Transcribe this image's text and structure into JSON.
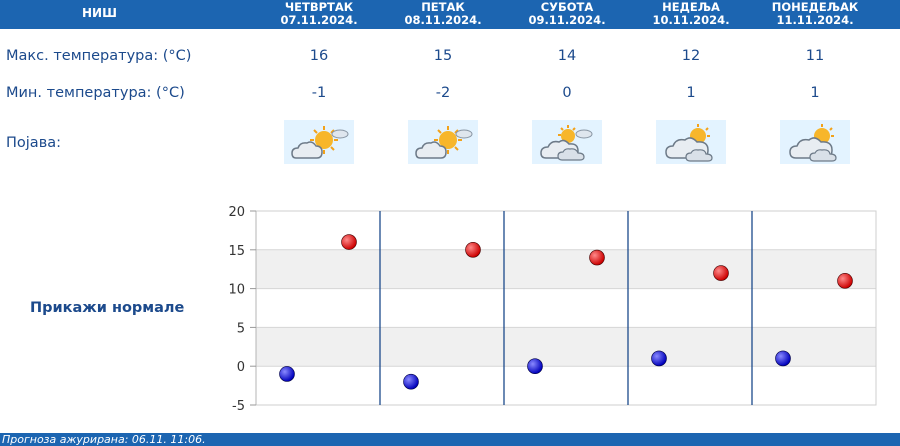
{
  "header": {
    "city": "НИШ"
  },
  "days": [
    {
      "name": "ЧЕТВРТАК",
      "date": "07.11.2024.",
      "max": "16",
      "min": "-1",
      "icon": "sun-behind-cloud-icon"
    },
    {
      "name": "ПЕТАК",
      "date": "08.11.2024.",
      "max": "15",
      "min": "-2",
      "icon": "sun-behind-cloud-icon"
    },
    {
      "name": "СУБОТА",
      "date": "09.11.2024.",
      "max": "14",
      "min": "0",
      "icon": "mostly-cloudy-icon"
    },
    {
      "name": "НЕДЕЉА",
      "date": "10.11.2024.",
      "max": "12",
      "min": "1",
      "icon": "cloudy-sun-icon"
    },
    {
      "name": "ПОНЕДЕЉАК",
      "date": "11.11.2024.",
      "max": "11",
      "min": "1",
      "icon": "cloudy-sun-icon"
    }
  ],
  "labels": {
    "max_temp": "Макс. температура: (°C)",
    "min_temp": "Мин. температура: (°C)",
    "phenomenon": "Појава:"
  },
  "show_normals": "Прикажи нормале",
  "footer": {
    "updated": "Прогноза ажурирана:  06.11.  11:06."
  },
  "colors": {
    "header_bg": "#1c65b1",
    "text": "#1c4a8c",
    "max_dot": "#cc0000",
    "min_dot": "#0000bb",
    "band": "#f0f0f0",
    "divider": "#1c4a8c"
  },
  "chart_data": {
    "type": "scatter",
    "categories": [
      "07.11.2024.",
      "08.11.2024.",
      "09.11.2024.",
      "10.11.2024.",
      "11.11.2024."
    ],
    "series": [
      {
        "values": [
          16,
          15,
          14,
          12,
          11
        ],
        "color": "#cc0000"
      },
      {
        "values": [
          -1,
          -2,
          0,
          1,
          1
        ],
        "color": "#0000bb"
      }
    ],
    "ylim": [
      -5,
      20
    ],
    "yticks": [
      "20",
      "15",
      "10",
      "5",
      "0",
      "-5"
    ],
    "grid": true
  }
}
